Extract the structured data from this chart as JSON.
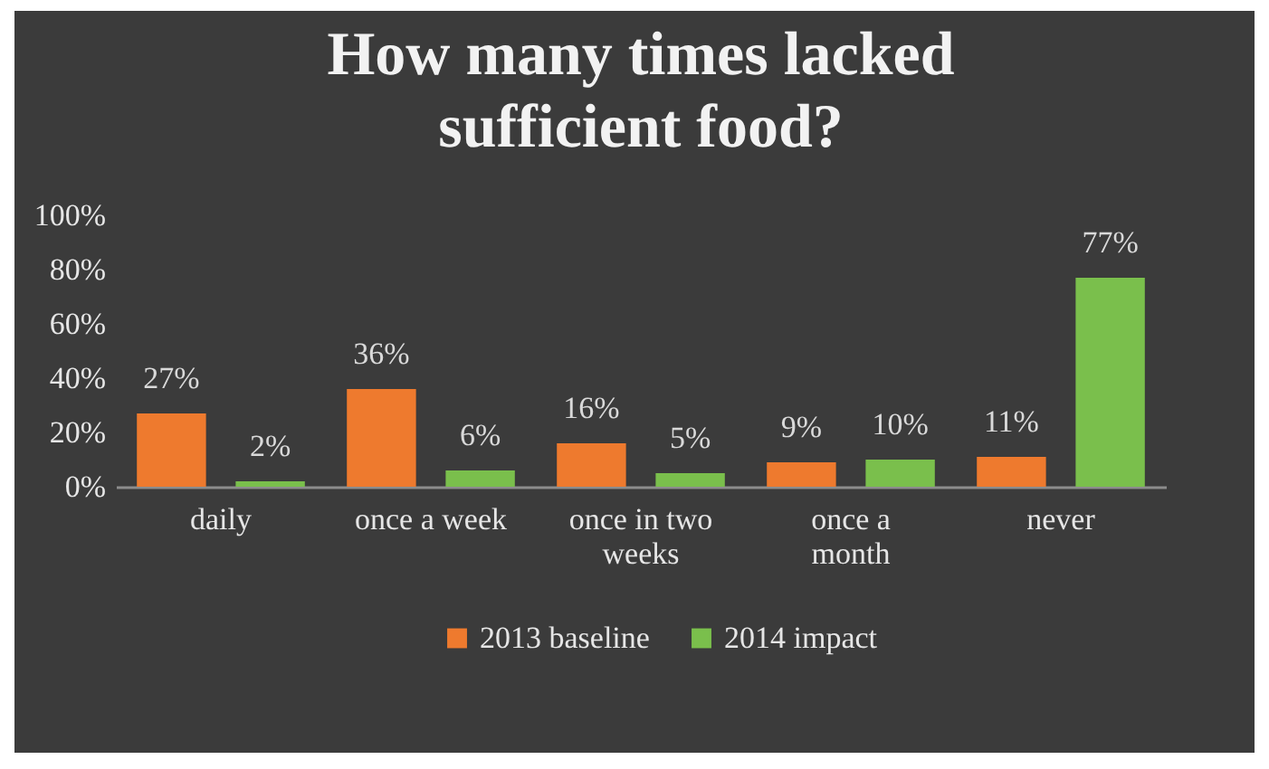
{
  "chart_data": {
    "type": "bar",
    "title": "How many times lacked sufficient food?",
    "categories": [
      "daily",
      "once a week",
      "once in two weeks",
      "once a month",
      "never"
    ],
    "series": [
      {
        "name": "2013 baseline",
        "color": "#ee7a2e",
        "values": [
          27,
          36,
          16,
          9,
          11
        ],
        "value_labels": [
          "27%",
          "36%",
          "16%",
          "9%",
          "11%"
        ]
      },
      {
        "name": "2014 impact",
        "color": "#7abf4c",
        "values": [
          2,
          6,
          5,
          10,
          77
        ],
        "value_labels": [
          "2%",
          "6%",
          "5%",
          "10%",
          "77%"
        ]
      }
    ],
    "ylim": [
      0,
      100
    ],
    "yticks": [
      {
        "value": 0,
        "label": "0%"
      },
      {
        "value": 20,
        "label": "20%"
      },
      {
        "value": 40,
        "label": "40%"
      },
      {
        "value": 60,
        "label": "60%"
      },
      {
        "value": 80,
        "label": "80%"
      },
      {
        "value": 100,
        "label": "100%"
      }
    ],
    "grid": false,
    "legend": "bottom"
  }
}
